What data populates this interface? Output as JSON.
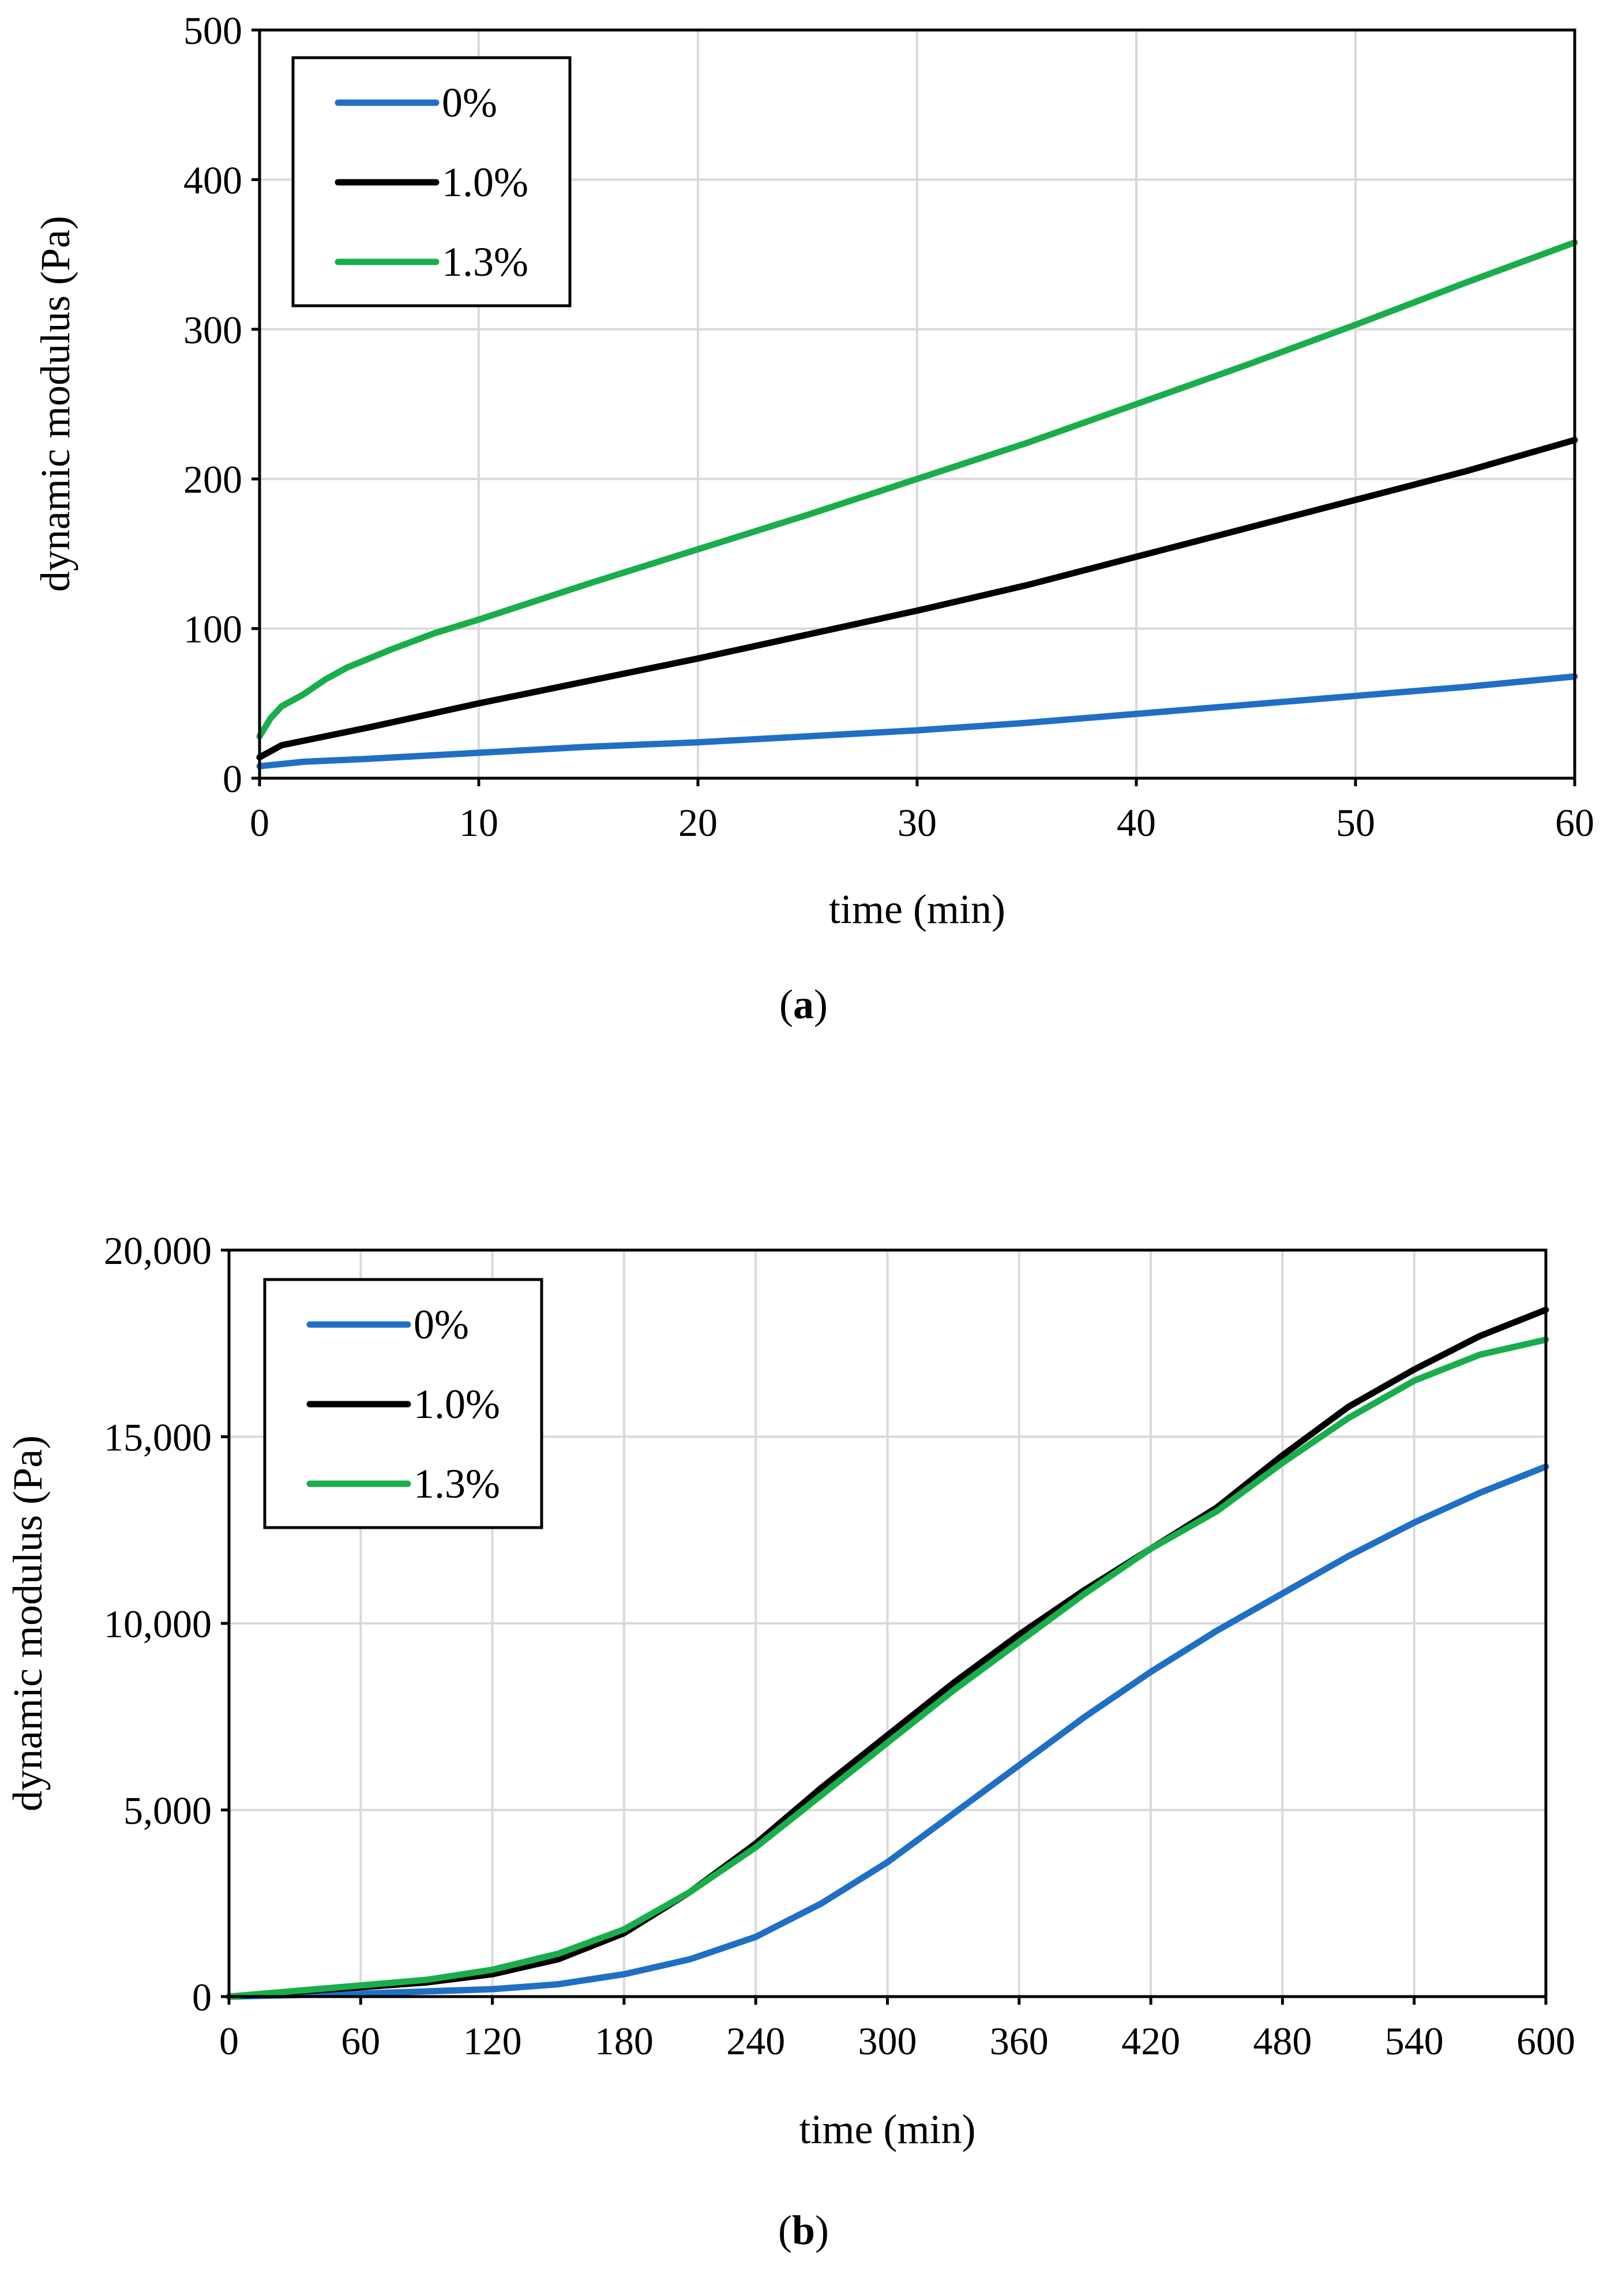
{
  "chart_data": [
    {
      "type": "line",
      "panel_label": "a",
      "xlabel": "time (min)",
      "ylabel": "dynamic modulus (Pa)",
      "xlim": [
        0,
        60
      ],
      "ylim": [
        0,
        500
      ],
      "xticks": [
        0,
        10,
        20,
        30,
        40,
        50,
        60
      ],
      "yticks": [
        0,
        100,
        200,
        300,
        400,
        500
      ],
      "xtick_labels": [
        "0",
        "10",
        "20",
        "30",
        "40",
        "50",
        "60"
      ],
      "ytick_labels": [
        "0",
        "100",
        "200",
        "300",
        "400",
        "500"
      ],
      "grid": true,
      "legend_position": "top-left",
      "series": [
        {
          "name": "0%",
          "color": "#1f6fc5",
          "x": [
            0,
            2,
            5,
            10,
            15,
            20,
            25,
            30,
            35,
            40,
            45,
            50,
            55,
            60
          ],
          "y": [
            8,
            11,
            13,
            17,
            21,
            24,
            28,
            32,
            37,
            43,
            49,
            55,
            61,
            68
          ]
        },
        {
          "name": "1.0%",
          "color": "#000000",
          "x": [
            0,
            1,
            3,
            5,
            10,
            15,
            20,
            25,
            30,
            35,
            40,
            45,
            50,
            55,
            60
          ],
          "y": [
            14,
            22,
            28,
            34,
            50,
            65,
            80,
            96,
            112,
            129,
            148,
            167,
            186,
            205,
            226
          ]
        },
        {
          "name": "1.3%",
          "color": "#1aad4b",
          "x": [
            0,
            0.5,
            1,
            2,
            3,
            4,
            6,
            8,
            10,
            15,
            20,
            25,
            30,
            35,
            40,
            45,
            50,
            55,
            60
          ],
          "y": [
            28,
            40,
            48,
            56,
            66,
            74,
            86,
            97,
            106,
            130,
            153,
            176,
            200,
            224,
            250,
            276,
            303,
            331,
            358
          ]
        }
      ]
    },
    {
      "type": "line",
      "panel_label": "b",
      "xlabel": "time (min)",
      "ylabel": "dynamic modulus (Pa)",
      "xlim": [
        0,
        600
      ],
      "ylim": [
        0,
        20000
      ],
      "xticks": [
        0,
        60,
        120,
        180,
        240,
        300,
        360,
        420,
        480,
        540,
        600
      ],
      "yticks": [
        0,
        5000,
        10000,
        15000,
        20000
      ],
      "xtick_labels": [
        "0",
        "60",
        "120",
        "180",
        "240",
        "300",
        "360",
        "420",
        "480",
        "540",
        "600"
      ],
      "ytick_labels": [
        "0",
        "5,000",
        "10,000",
        "15,000",
        "20,000"
      ],
      "grid": true,
      "legend_position": "top-left",
      "series": [
        {
          "name": "0%",
          "color": "#1f6fc5",
          "x": [
            0,
            60,
            120,
            150,
            180,
            210,
            240,
            270,
            300,
            330,
            360,
            390,
            420,
            450,
            480,
            510,
            540,
            570,
            600
          ],
          "y": [
            0,
            80,
            200,
            330,
            600,
            1000,
            1600,
            2500,
            3600,
            4900,
            6200,
            7500,
            8700,
            9800,
            10800,
            11800,
            12700,
            13500,
            14200
          ]
        },
        {
          "name": "1.0%",
          "color": "#000000",
          "x": [
            0,
            60,
            90,
            120,
            150,
            180,
            210,
            240,
            270,
            300,
            330,
            360,
            390,
            420,
            450,
            480,
            510,
            540,
            570,
            600
          ],
          "y": [
            0,
            250,
            380,
            600,
            1000,
            1700,
            2800,
            4100,
            5600,
            7000,
            8400,
            9700,
            10900,
            12000,
            13100,
            14500,
            15800,
            16800,
            17700,
            18400
          ]
        },
        {
          "name": "1.3%",
          "color": "#1aad4b",
          "x": [
            0,
            60,
            90,
            120,
            150,
            180,
            210,
            240,
            270,
            300,
            330,
            360,
            390,
            420,
            450,
            480,
            510,
            540,
            570,
            600
          ],
          "y": [
            0,
            300,
            450,
            720,
            1150,
            1800,
            2800,
            4000,
            5400,
            6800,
            8200,
            9500,
            10800,
            12000,
            13000,
            14300,
            15500,
            16500,
            17200,
            17600
          ]
        }
      ]
    }
  ]
}
